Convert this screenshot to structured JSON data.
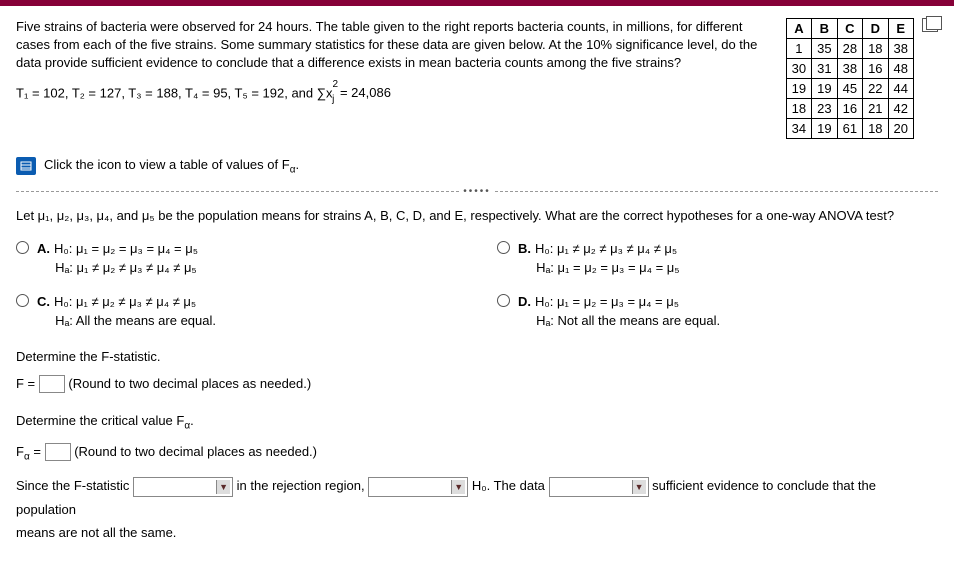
{
  "intro": "Five strains of bacteria were observed for 24 hours. The table given to the right reports bacteria counts, in millions, for different cases from each of the five strains. Some summary statistics for these data are given below. At the 10% significance level, do the data provide sufficient evidence to conclude that a difference exists in mean bacteria counts among the five strains?",
  "stats_prefix": "T₁ = 102, T₂ = 127, T₃ = 188, T₄ = 95, T₅ = 192, and ",
  "stats_sum": "∑x",
  "stats_sum_sup": "2",
  "stats_sum_sub": "j",
  "stats_suffix": " = 24,086",
  "table": {
    "headers": [
      "A",
      "B",
      "C",
      "D",
      "E"
    ],
    "rows": [
      [
        "1",
        "35",
        "28",
        "18",
        "38"
      ],
      [
        "30",
        "31",
        "38",
        "16",
        "48"
      ],
      [
        "19",
        "19",
        "45",
        "22",
        "44"
      ],
      [
        "18",
        "23",
        "16",
        "21",
        "42"
      ],
      [
        "34",
        "19",
        "61",
        "18",
        "20"
      ]
    ],
    "border_color": "#000000",
    "header_bg": "#ffffff"
  },
  "fvalues_link": "Click the icon to view a table of values of F",
  "fvalues_sub": "α",
  "fvalues_suffix": ".",
  "hyp_prompt": "Let μ₁, μ₂, μ₃, μ₄, and μ₅ be the population means for strains A, B, C, D, and E, respectively. What are the correct hypotheses for a one-way ANOVA test?",
  "options": {
    "A": {
      "h0": "H₀: μ₁ = μ₂ = μ₃ = μ₄ = μ₅",
      "ha": "Hₐ: μ₁ ≠ μ₂ ≠ μ₃ ≠ μ₄ ≠ μ₅"
    },
    "B": {
      "h0": "H₀: μ₁ ≠ μ₂ ≠ μ₃ ≠ μ₄ ≠ μ₅",
      "ha": "Hₐ: μ₁ = μ₂ = μ₃ = μ₄ = μ₅"
    },
    "C": {
      "h0": "H₀: μ₁ ≠ μ₂ ≠ μ₃ ≠ μ₄ ≠ μ₅",
      "ha": "Hₐ: All the means are equal."
    },
    "D": {
      "h0": "H₀: μ₁ = μ₂ = μ₃ = μ₄ = μ₅",
      "ha": "Hₐ: Not all the means are equal."
    }
  },
  "det_fstat": "Determine the F-statistic.",
  "f_eq": "F = ",
  "round_hint": "(Round to two decimal places as needed.)",
  "det_crit": "Determine the critical value F",
  "det_crit_sub": "α",
  "det_crit_suffix": ".",
  "falpha_eq_pre": "F",
  "falpha_eq_sub": "α",
  "falpha_eq_post": " = ",
  "conclusion": {
    "p1": "Since the F-statistic ",
    "p2": " in the rejection region, ",
    "p3": " H₀. The data ",
    "p4": " sufficient evidence to conclude that the population",
    "p5": "means are not all the same."
  }
}
